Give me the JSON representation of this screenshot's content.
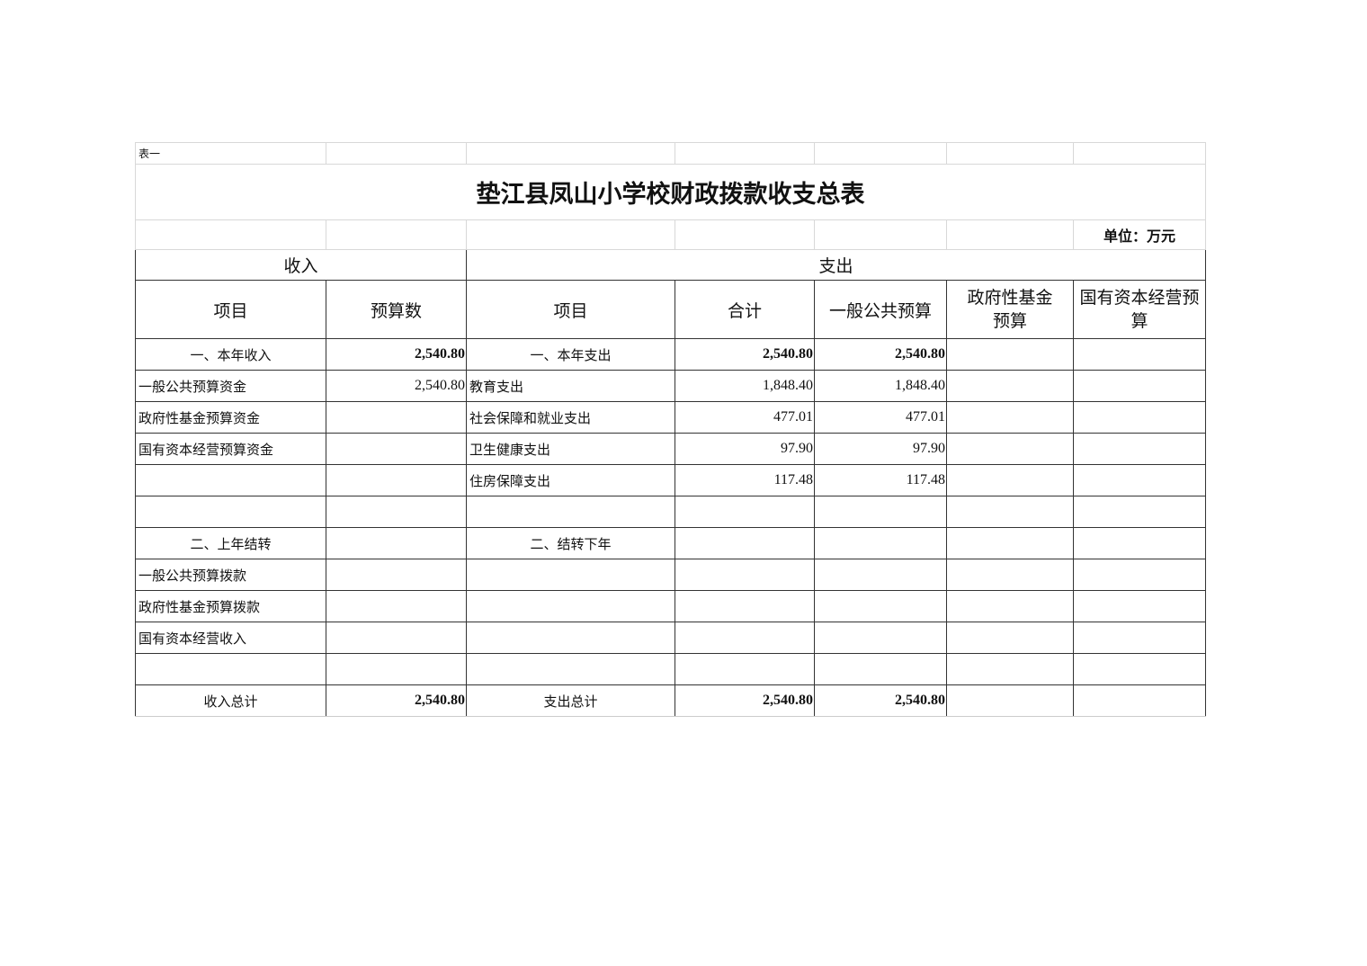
{
  "table_label": "表一",
  "title": "垫江县凤山小学校财政拨款收支总表",
  "unit": "单位：万元",
  "headers": {
    "income": "收入",
    "expense": "支出",
    "item": "项目",
    "budget": "预算数",
    "item2": "项目",
    "total": "合计",
    "general": "一般公共预算",
    "fund": "政府性基金预算",
    "capital": "国有资本经营预算"
  },
  "rows": [
    {
      "inc": "一、本年收入",
      "inc_val": "2,540.80",
      "exp": "一、本年支出",
      "total": "2,540.80",
      "general": "2,540.80",
      "fund": "",
      "capital": ""
    },
    {
      "inc": "一般公共预算资金",
      "inc_val": "2,540.80",
      "exp": "教育支出",
      "total": "1,848.40",
      "general": "1,848.40",
      "fund": "",
      "capital": ""
    },
    {
      "inc": "政府性基金预算资金",
      "inc_val": "",
      "exp": "社会保障和就业支出",
      "total": "477.01",
      "general": "477.01",
      "fund": "",
      "capital": ""
    },
    {
      "inc": "国有资本经营预算资金",
      "inc_val": "",
      "exp": "卫生健康支出",
      "total": "97.90",
      "general": "97.90",
      "fund": "",
      "capital": ""
    },
    {
      "inc": "",
      "inc_val": "",
      "exp": "住房保障支出",
      "total": "117.48",
      "general": "117.48",
      "fund": "",
      "capital": ""
    },
    {
      "inc": "",
      "inc_val": "",
      "exp": "",
      "total": "",
      "general": "",
      "fund": "",
      "capital": ""
    },
    {
      "inc": "二、上年结转",
      "inc_val": "",
      "exp": "二、结转下年",
      "total": "",
      "general": "",
      "fund": "",
      "capital": ""
    },
    {
      "inc": "一般公共预算拨款",
      "inc_val": "",
      "exp": "",
      "total": "",
      "general": "",
      "fund": "",
      "capital": ""
    },
    {
      "inc": "政府性基金预算拨款",
      "inc_val": "",
      "exp": "",
      "total": "",
      "general": "",
      "fund": "",
      "capital": ""
    },
    {
      "inc": "国有资本经营收入",
      "inc_val": "",
      "exp": "",
      "total": "",
      "general": "",
      "fund": "",
      "capital": ""
    },
    {
      "inc": "",
      "inc_val": "",
      "exp": "",
      "total": "",
      "general": "",
      "fund": "",
      "capital": ""
    },
    {
      "inc": "收入总计",
      "inc_val": "2,540.80",
      "exp": "支出总计",
      "total": "2,540.80",
      "general": "2,540.80",
      "fund": "",
      "capital": ""
    }
  ]
}
